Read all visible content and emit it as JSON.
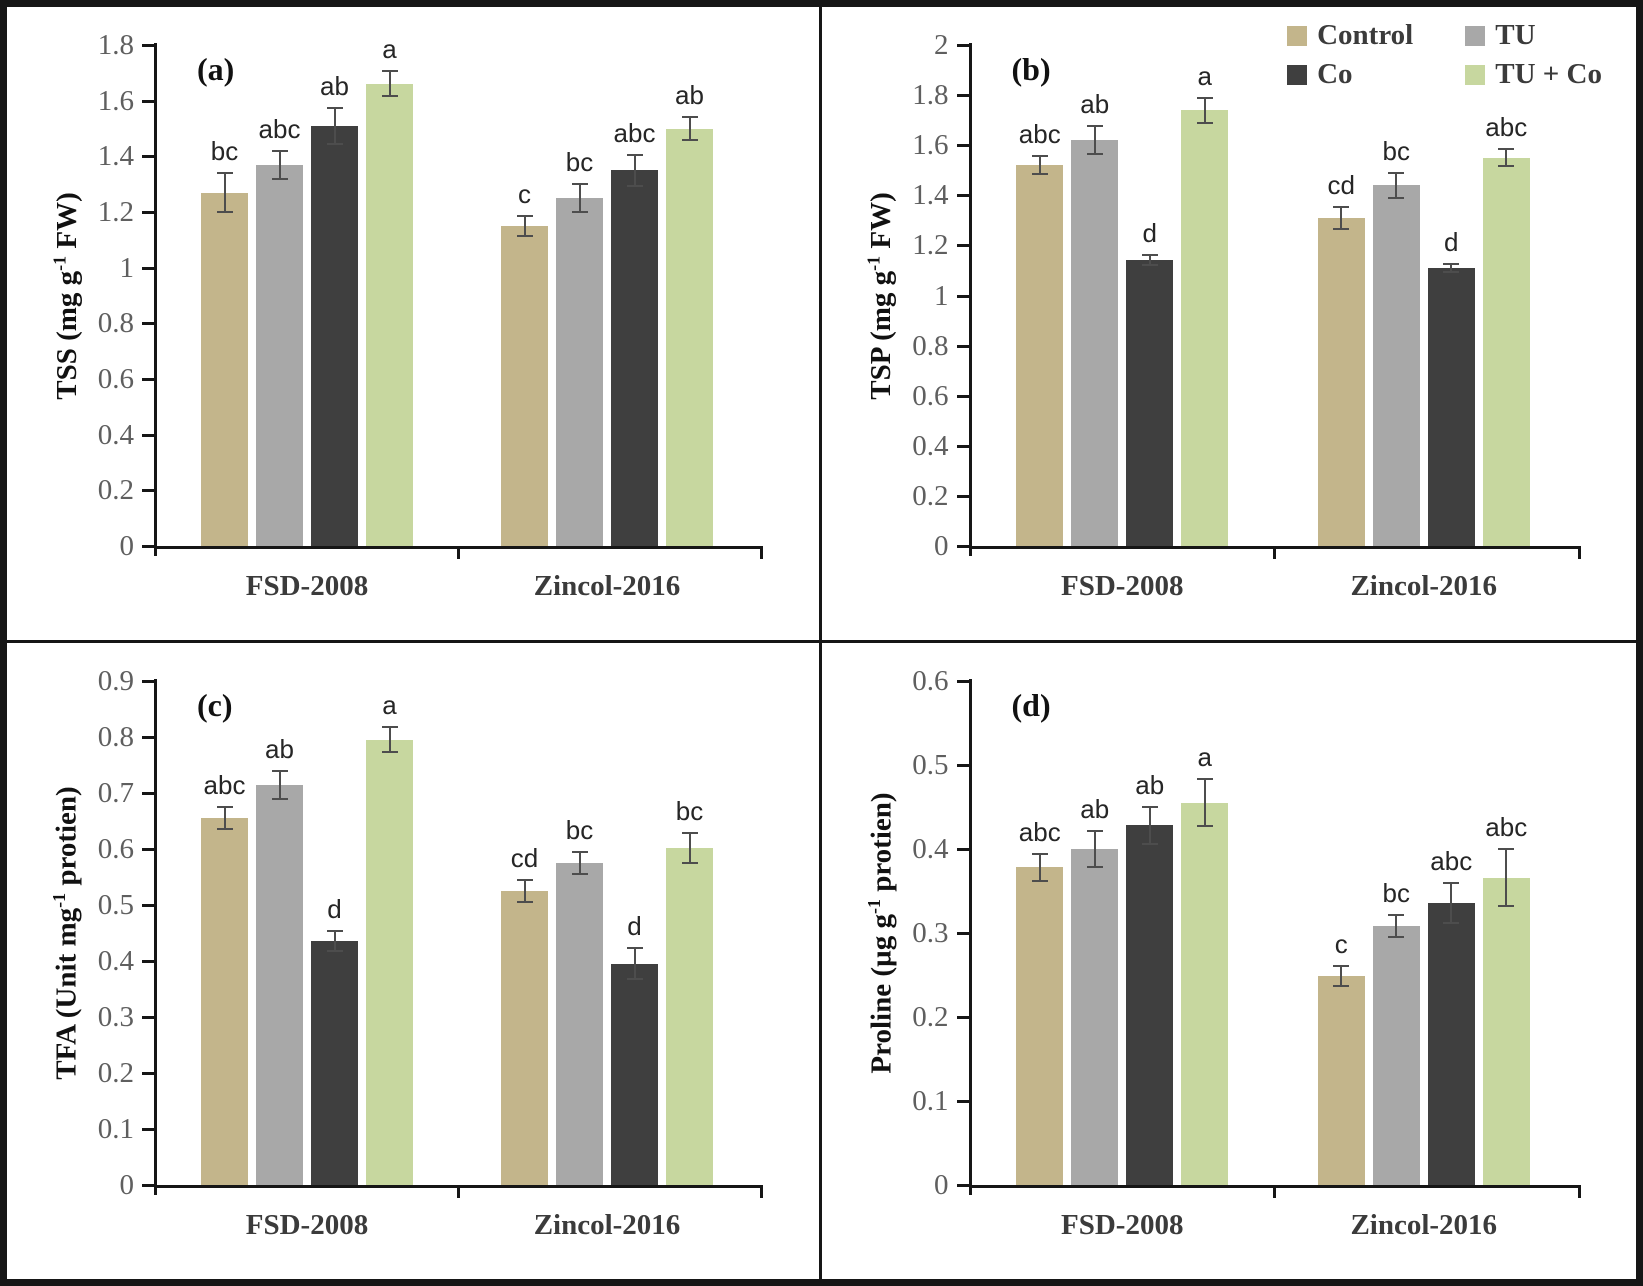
{
  "legend": {
    "position": "top-right-of-panel-b",
    "items": [
      {
        "label": "Control",
        "color": "#c3b58b"
      },
      {
        "label": "TU",
        "color": "#a8a8a8"
      },
      {
        "label": "Co",
        "color": "#3f3f3f"
      },
      {
        "label": "TU + Co",
        "color": "#c7d79f"
      }
    ]
  },
  "styles": {
    "background": "#ffffff",
    "frame_color": "#161616",
    "axis_color": "#161616",
    "tick_label_color": "#5f5f5f",
    "category_label_color": "#3b3b3b",
    "sig_letter_color": "#262626",
    "error_bar_color": "#4d4d4d"
  },
  "chart_data": [
    {
      "type": "bar",
      "panel_label": "(a)",
      "ylabel_text": "TSS (mg g-1 FW)",
      "ylabel_parts": {
        "prefix": "TSS  (mg g",
        "sup": "-1",
        "suffix": " FW)"
      },
      "ylim": [
        0,
        1.8
      ],
      "ystep": 0.2,
      "grid": false,
      "show_legend": false,
      "categories": [
        "FSD-2008",
        "Zincol-2016"
      ],
      "series": [
        {
          "name": "Control",
          "values": [
            1.27,
            1.15
          ],
          "errors": [
            0.07,
            0.035
          ],
          "sig_letters": [
            "bc",
            "c"
          ]
        },
        {
          "name": "TU",
          "values": [
            1.37,
            1.25
          ],
          "errors": [
            0.05,
            0.05
          ],
          "sig_letters": [
            "abc",
            "bc"
          ]
        },
        {
          "name": "Co",
          "values": [
            1.51,
            1.35
          ],
          "errors": [
            0.065,
            0.055
          ],
          "sig_letters": [
            "ab",
            "abc"
          ]
        },
        {
          "name": "TU + Co",
          "values": [
            1.66,
            1.5
          ],
          "errors": [
            0.045,
            0.04
          ],
          "sig_letters": [
            "a",
            "ab"
          ]
        }
      ]
    },
    {
      "type": "bar",
      "panel_label": "(b)",
      "ylabel_text": "TSP (mg g-1 FW)",
      "ylabel_parts": {
        "prefix": "TSP (mg g",
        "sup": "-1",
        "suffix": " FW)"
      },
      "ylim": [
        0,
        2
      ],
      "ystep": 0.2,
      "grid": false,
      "show_legend": true,
      "categories": [
        "FSD-2008",
        "Zincol-2016"
      ],
      "series": [
        {
          "name": "Control",
          "values": [
            1.52,
            1.31
          ],
          "errors": [
            0.035,
            0.045
          ],
          "sig_letters": [
            "abc",
            "cd"
          ]
        },
        {
          "name": "TU",
          "values": [
            1.62,
            1.44
          ],
          "errors": [
            0.055,
            0.05
          ],
          "sig_letters": [
            "ab",
            "bc"
          ]
        },
        {
          "name": "Co",
          "values": [
            1.14,
            1.11
          ],
          "errors": [
            0.02,
            0.015
          ],
          "sig_letters": [
            "d",
            "d"
          ]
        },
        {
          "name": "TU + Co",
          "values": [
            1.74,
            1.55
          ],
          "errors": [
            0.05,
            0.035
          ],
          "sig_letters": [
            "a",
            "abc"
          ]
        }
      ]
    },
    {
      "type": "bar",
      "panel_label": "(c)",
      "ylabel_text": "TFA (Unit mg-1 protien)",
      "ylabel_parts": {
        "prefix": "TFA (Unit mg",
        "sup": "-1",
        "suffix": " protien)"
      },
      "ylim": [
        0,
        0.9
      ],
      "ystep": 0.1,
      "grid": false,
      "show_legend": false,
      "categories": [
        "FSD-2008",
        "Zincol-2016"
      ],
      "series": [
        {
          "name": "Control",
          "values": [
            0.655,
            0.525
          ],
          "errors": [
            0.02,
            0.02
          ],
          "sig_letters": [
            "abc",
            "cd"
          ]
        },
        {
          "name": "TU",
          "values": [
            0.715,
            0.575
          ],
          "errors": [
            0.025,
            0.02
          ],
          "sig_letters": [
            "ab",
            "bc"
          ]
        },
        {
          "name": "Co",
          "values": [
            0.435,
            0.395
          ],
          "errors": [
            0.018,
            0.028
          ],
          "sig_letters": [
            "d",
            "d"
          ]
        },
        {
          "name": "TU + Co",
          "values": [
            0.795,
            0.602
          ],
          "errors": [
            0.022,
            0.027
          ],
          "sig_letters": [
            "a",
            "bc"
          ]
        }
      ]
    },
    {
      "type": "bar",
      "panel_label": "(d)",
      "ylabel_text": "Proline (µg g-1 protien)",
      "ylabel_parts": {
        "prefix": "Proline (µg g",
        "sup": "-1",
        "suffix": " protien)"
      },
      "ylim": [
        0,
        0.6
      ],
      "ystep": 0.1,
      "grid": false,
      "show_legend": false,
      "categories": [
        "FSD-2008",
        "Zincol-2016"
      ],
      "series": [
        {
          "name": "Control",
          "values": [
            0.378,
            0.249
          ],
          "errors": [
            0.016,
            0.012
          ],
          "sig_letters": [
            "abc",
            "c"
          ]
        },
        {
          "name": "TU",
          "values": [
            0.4,
            0.308
          ],
          "errors": [
            0.022,
            0.013
          ],
          "sig_letters": [
            "ab",
            "bc"
          ]
        },
        {
          "name": "Co",
          "values": [
            0.428,
            0.336
          ],
          "errors": [
            0.022,
            0.024
          ],
          "sig_letters": [
            "ab",
            "abc"
          ]
        },
        {
          "name": "TU + Co",
          "values": [
            0.455,
            0.366
          ],
          "errors": [
            0.028,
            0.034
          ],
          "sig_letters": [
            "a",
            "abc"
          ]
        }
      ]
    }
  ]
}
